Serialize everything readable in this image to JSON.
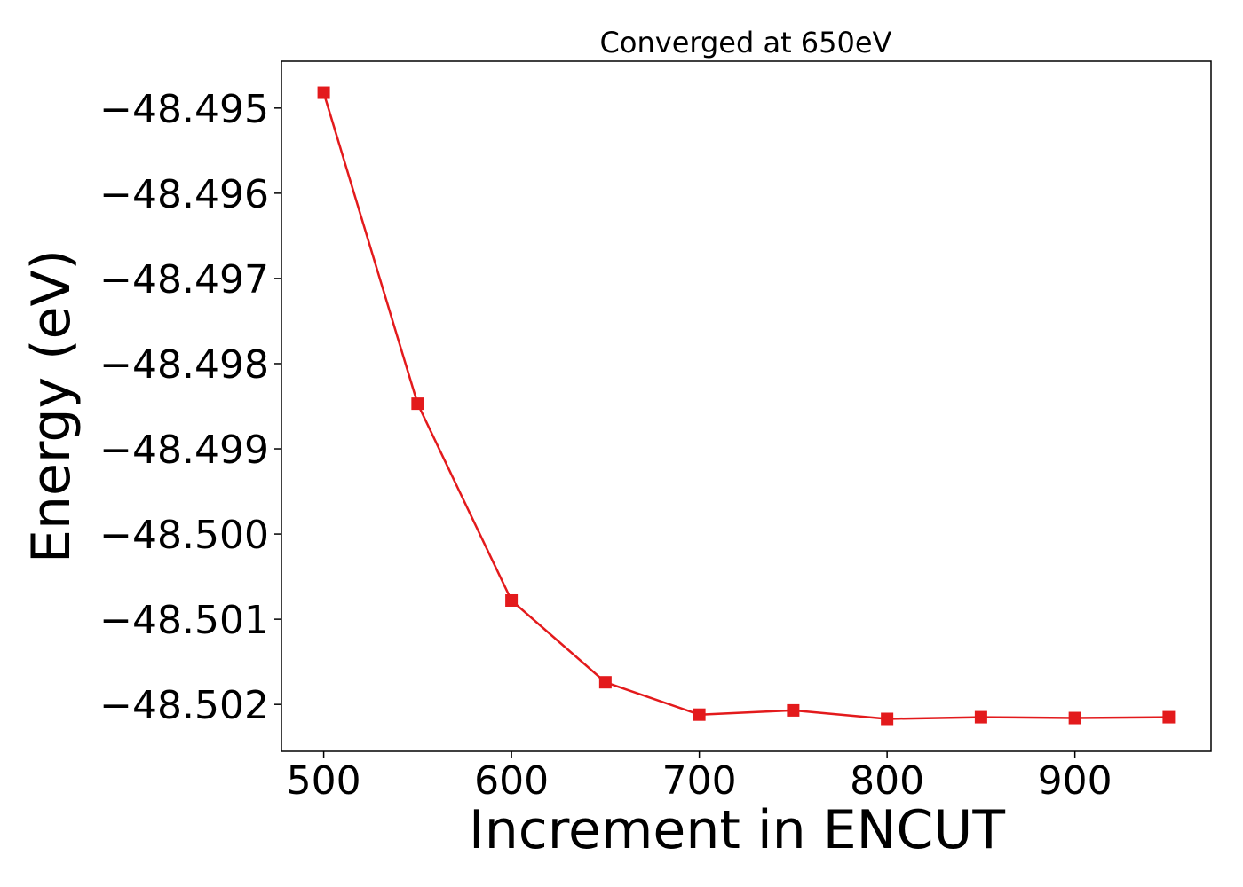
{
  "chart_data": {
    "type": "line",
    "title": "Converged at 650eV",
    "xlabel": "Increment in ENCUT",
    "ylabel": "Energy (eV)",
    "x": [
      500,
      550,
      600,
      650,
      700,
      750,
      800,
      850,
      900,
      950
    ],
    "series": [
      {
        "values": [
          -48.49482,
          -48.49847,
          -48.50078,
          -48.50174,
          -48.50212,
          -48.50207,
          -48.50217,
          -48.50215,
          -48.50216,
          -48.50215
        ],
        "color": "#e31a1c",
        "marker": "square"
      }
    ],
    "xlim": [
      477.5,
      972.5
    ],
    "ylim": [
      -48.50255,
      -48.49445
    ],
    "xticks": [
      500,
      600,
      700,
      800,
      900
    ],
    "xtick_labels": [
      "500",
      "600",
      "700",
      "800",
      "900"
    ],
    "yticks": [
      -48.495,
      -48.496,
      -48.497,
      -48.498,
      -48.499,
      -48.5,
      -48.501,
      -48.502
    ],
    "ytick_labels": [
      "−48.495",
      "−48.496",
      "−48.497",
      "−48.498",
      "−48.499",
      "−48.500",
      "−48.501",
      "−48.502"
    ],
    "grid": false,
    "legend": "none"
  }
}
